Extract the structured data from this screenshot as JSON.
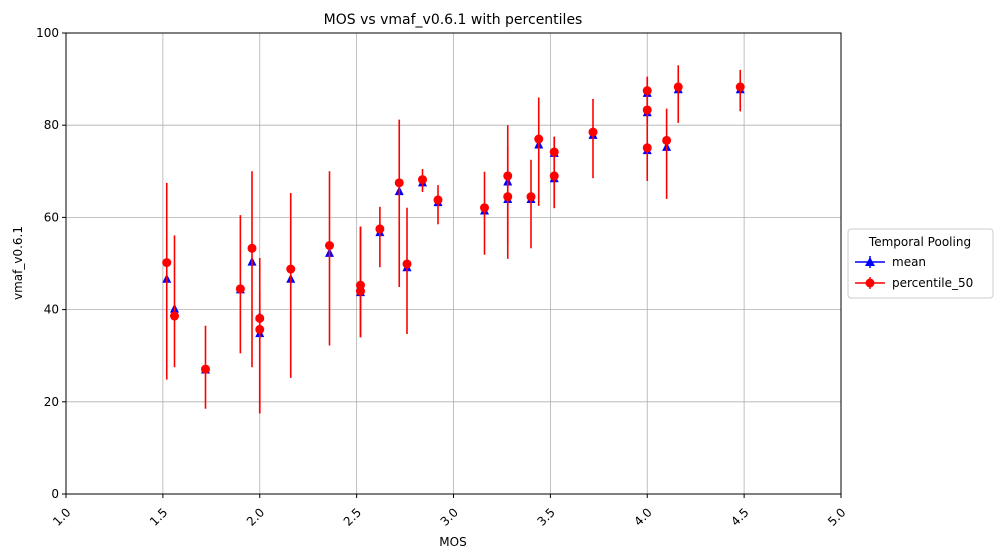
{
  "chart_data": {
    "type": "scatter",
    "title": "MOS vs vmaf_v0.6.1 with percentiles",
    "xlabel": "MOS",
    "ylabel": "vmaf_v0.6.1",
    "xlim": [
      1.0,
      5.0
    ],
    "ylim": [
      0,
      100
    ],
    "xticks": [
      "1.0",
      "1.5",
      "2.0",
      "2.5",
      "3.0",
      "3.5",
      "4.0",
      "4.5",
      "5.0"
    ],
    "yticks": [
      "0",
      "20",
      "40",
      "60",
      "80",
      "100"
    ],
    "grid": true,
    "legend": {
      "title": "Temporal Pooling",
      "placement": "outside-right",
      "entries": [
        "mean",
        "percentile_50"
      ]
    },
    "colors": {
      "mean": "#0000ff",
      "percentile_50": "#ff0000",
      "grid": "#b0b0b0"
    },
    "series": [
      {
        "name": "mean",
        "marker": "triangle",
        "points": [
          [
            1.52,
            46.7
          ],
          [
            1.56,
            40.2
          ],
          [
            1.72,
            27.0
          ],
          [
            1.9,
            44.4
          ],
          [
            1.96,
            50.4
          ],
          [
            2.0,
            38.5
          ],
          [
            2.0,
            34.9
          ],
          [
            2.16,
            46.7
          ],
          [
            2.36,
            52.3
          ],
          [
            2.52,
            43.8
          ],
          [
            2.52,
            45.0
          ],
          [
            2.62,
            56.8
          ],
          [
            2.72,
            65.7
          ],
          [
            2.76,
            49.2
          ],
          [
            2.84,
            67.6
          ],
          [
            2.92,
            63.3
          ],
          [
            3.16,
            61.5
          ],
          [
            3.28,
            67.8
          ],
          [
            3.28,
            64.0
          ],
          [
            3.4,
            64.0
          ],
          [
            3.44,
            75.8
          ],
          [
            3.52,
            74.0
          ],
          [
            3.52,
            68.5
          ],
          [
            3.72,
            77.9
          ],
          [
            4.0,
            87.0
          ],
          [
            4.0,
            82.8
          ],
          [
            4.0,
            74.6
          ],
          [
            4.1,
            75.3
          ],
          [
            4.16,
            87.8
          ],
          [
            4.48,
            87.8
          ]
        ]
      },
      {
        "name": "percentile_50",
        "marker": "circle",
        "points": [
          [
            1.52,
            50.2,
            24.8,
            67.5
          ],
          [
            1.56,
            38.6,
            27.5,
            56.1
          ],
          [
            1.72,
            27.1,
            18.5,
            36.5
          ],
          [
            1.9,
            44.5,
            30.5,
            60.5
          ],
          [
            1.96,
            53.3,
            27.5,
            70.0
          ],
          [
            2.0,
            38.1,
            17.5,
            51.2
          ],
          [
            2.0,
            35.7,
            17.5,
            44.0
          ],
          [
            2.16,
            48.8,
            25.2,
            65.3
          ],
          [
            2.36,
            53.9,
            32.2,
            70.0
          ],
          [
            2.52,
            45.3,
            34.0,
            58.0
          ],
          [
            2.52,
            44.0,
            34.0,
            58.0
          ],
          [
            2.62,
            57.5,
            49.2,
            62.3
          ],
          [
            2.72,
            67.5,
            44.9,
            81.2
          ],
          [
            2.76,
            49.9,
            34.7,
            62.1
          ],
          [
            2.84,
            68.2,
            65.5,
            70.5
          ],
          [
            2.92,
            63.8,
            58.5,
            67.0
          ],
          [
            3.16,
            62.1,
            51.9,
            69.9
          ],
          [
            3.28,
            69.0,
            54.0,
            80.0
          ],
          [
            3.28,
            64.5,
            51.0,
            75.5
          ],
          [
            3.4,
            64.5,
            53.3,
            72.5
          ],
          [
            3.44,
            77.0,
            62.5,
            86.0
          ],
          [
            3.52,
            74.2,
            62.0,
            77.5
          ],
          [
            3.52,
            69.0,
            62.0,
            77.5
          ],
          [
            3.72,
            78.5,
            68.5,
            85.7
          ],
          [
            4.0,
            87.5,
            80.0,
            90.5
          ],
          [
            4.0,
            83.3,
            80.5,
            90.5
          ],
          [
            4.0,
            75.1,
            67.9,
            80.0
          ],
          [
            4.1,
            76.7,
            64.0,
            83.6
          ],
          [
            4.16,
            88.3,
            80.5,
            93.0
          ],
          [
            4.48,
            88.3,
            83.0,
            92.0
          ]
        ]
      }
    ]
  }
}
